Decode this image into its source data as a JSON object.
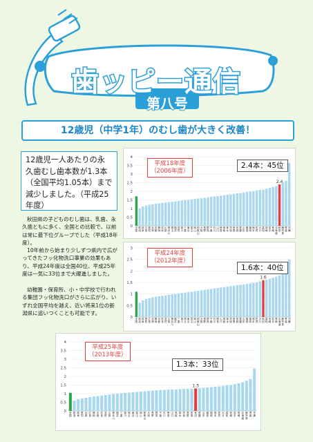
{
  "header": {
    "title": "歯ッピー通信",
    "issue": "第八号"
  },
  "banner": {
    "headline": "12歳児（中学1年）のむし歯が大きく改善！"
  },
  "lead": {
    "text": "12歳児一人あたりの永久歯むし歯本数が1.3本（全国平均1.05本）まで減少しました。（平成25年度）"
  },
  "body": {
    "paragraphs": [
      "秋田県の子どものむし歯は、乳歯、永久歯ともに多く、全国との比較で、以前は常に最下位グループでした（平成18年度）。",
      "10年前から始まり少しずつ県内で広がってきたフッ化物洗口事業の効果もあり、平成24年度は全国40位、平成25年度は一気に33位まで大躍進しました。",
      "幼稚園・保育所、小・中学校で行われる集団フッ化物洗口がさらに広がり、いずれ全国平均を越え、近い将来1位の新潟県に追いつくことも可能です。"
    ]
  },
  "colors": {
    "accent_blue": "#2a9fd8",
    "bar_blue": "#a8d8f0",
    "highlight_red": "#e53d3d",
    "first_green": "#2aa84a",
    "background": "#eef7e3"
  },
  "chart_data": [
    {
      "type": "bar",
      "year_label": "平成18年度",
      "year_sub": "（2006年度）",
      "callout": "2.4本：45位",
      "value_label": "2.4",
      "ylim": [
        0,
        4
      ],
      "yticks": [
        "0",
        "0.5",
        "1",
        "1.5",
        "2",
        "2.5",
        "3",
        "3.5",
        "4"
      ],
      "categories": [
        "全国",
        "新潟",
        "岐阜",
        "広島",
        "愛知",
        "兵庫",
        "京都",
        "静岡",
        "奈良",
        "山梨",
        "神奈川",
        "埼玉",
        "福井",
        "滋賀",
        "香川",
        "三重",
        "東京",
        "富山",
        "岡山",
        "和歌山",
        "大阪",
        "長野",
        "群馬",
        "千葉",
        "石川",
        "山口",
        "徳島",
        "鳥取",
        "栃木",
        "茨城",
        "島根",
        "宮城",
        "愛媛",
        "山形",
        "福島",
        "福岡",
        "熊本",
        "佐賀",
        "大分",
        "高知",
        "宮崎",
        "岩手",
        "長崎",
        "北海道",
        "秋田",
        "鹿児島",
        "青森",
        "沖縄"
      ],
      "values": [
        1.71,
        1.0,
        1.12,
        1.17,
        1.22,
        1.25,
        1.28,
        1.3,
        1.33,
        1.35,
        1.38,
        1.4,
        1.42,
        1.44,
        1.46,
        1.48,
        1.5,
        1.53,
        1.55,
        1.58,
        1.6,
        1.62,
        1.65,
        1.68,
        1.7,
        1.72,
        1.75,
        1.78,
        1.8,
        1.82,
        1.85,
        1.88,
        1.9,
        1.93,
        1.96,
        1.98,
        2.0,
        2.05,
        2.08,
        2.1,
        2.15,
        2.2,
        2.25,
        2.3,
        2.4,
        2.5,
        2.6,
        3.65
      ],
      "highlight_index": 44
    },
    {
      "type": "bar",
      "year_label": "平成24年度",
      "year_sub": "（2012年度）",
      "callout": "1.6本：40位",
      "value_label": "1.6",
      "ylim": [
        0,
        3
      ],
      "yticks": [
        "0",
        "0.5",
        "1",
        "1.5",
        "2",
        "2.5",
        "3"
      ],
      "categories": [
        "全国",
        "新潟",
        "岐阜",
        "愛知",
        "広島",
        "兵庫",
        "静岡",
        "京都",
        "奈良",
        "滋賀",
        "山梨",
        "神奈川",
        "福井",
        "三重",
        "香川",
        "埼玉",
        "東京",
        "富山",
        "岡山",
        "和歌山",
        "大阪",
        "長野",
        "群馬",
        "千葉",
        "石川",
        "徳島",
        "山口",
        "鳥取",
        "栃木",
        "茨城",
        "島根",
        "宮城",
        "愛媛",
        "山形",
        "福島",
        "福岡",
        "熊本",
        "佐賀",
        "大分",
        "秋田",
        "高知",
        "宮崎",
        "岩手",
        "長崎",
        "北海道",
        "鹿児島",
        "青森",
        "沖縄"
      ],
      "values": [
        1.1,
        0.62,
        0.72,
        0.78,
        0.82,
        0.86,
        0.88,
        0.9,
        0.92,
        0.94,
        0.96,
        0.98,
        1.0,
        1.02,
        1.04,
        1.06,
        1.08,
        1.1,
        1.12,
        1.14,
        1.16,
        1.18,
        1.2,
        1.22,
        1.24,
        1.26,
        1.28,
        1.3,
        1.32,
        1.34,
        1.36,
        1.38,
        1.4,
        1.42,
        1.44,
        1.46,
        1.48,
        1.5,
        1.55,
        1.6,
        1.62,
        1.66,
        1.7,
        1.75,
        1.8,
        1.9,
        2.05,
        2.5
      ],
      "highlight_index": 39
    },
    {
      "type": "bar",
      "year_label": "平成25年度",
      "year_sub": "（2013年度）",
      "callout": "1.3本：33位",
      "value_label": "1.3",
      "ylim": [
        0,
        4
      ],
      "yticks": [
        "0",
        "0.5",
        "1",
        "1.5",
        "2",
        "2.5",
        "3",
        "3.5",
        "4"
      ],
      "categories": [
        "全国",
        "新潟",
        "岐阜",
        "愛知",
        "兵庫",
        "広島",
        "静岡",
        "京都",
        "奈良",
        "滋賀",
        "山梨",
        "神奈川",
        "福井",
        "三重",
        "香川",
        "埼玉",
        "東京",
        "富山",
        "岡山",
        "和歌山",
        "大阪",
        "長野",
        "群馬",
        "千葉",
        "石川",
        "徳島",
        "山口",
        "鳥取",
        "栃木",
        "茨城",
        "島根",
        "宮城",
        "秋田",
        "愛媛",
        "山形",
        "福島",
        "福岡",
        "熊本",
        "佐賀",
        "大分",
        "高知",
        "宮崎",
        "岩手",
        "長崎",
        "北海道",
        "鹿児島",
        "青森",
        "沖縄"
      ],
      "values": [
        1.05,
        0.6,
        0.68,
        0.72,
        0.76,
        0.8,
        0.83,
        0.86,
        0.89,
        0.92,
        0.95,
        0.98,
        1.0,
        1.02,
        1.04,
        1.06,
        1.08,
        1.1,
        1.12,
        1.14,
        1.16,
        1.18,
        1.2,
        1.21,
        1.22,
        1.23,
        1.24,
        1.25,
        1.26,
        1.27,
        1.28,
        1.29,
        1.3,
        1.32,
        1.34,
        1.36,
        1.38,
        1.4,
        1.42,
        1.45,
        1.48,
        1.5,
        1.55,
        1.6,
        1.66,
        1.75,
        1.85,
        2.45
      ],
      "highlight_index": 32
    }
  ]
}
